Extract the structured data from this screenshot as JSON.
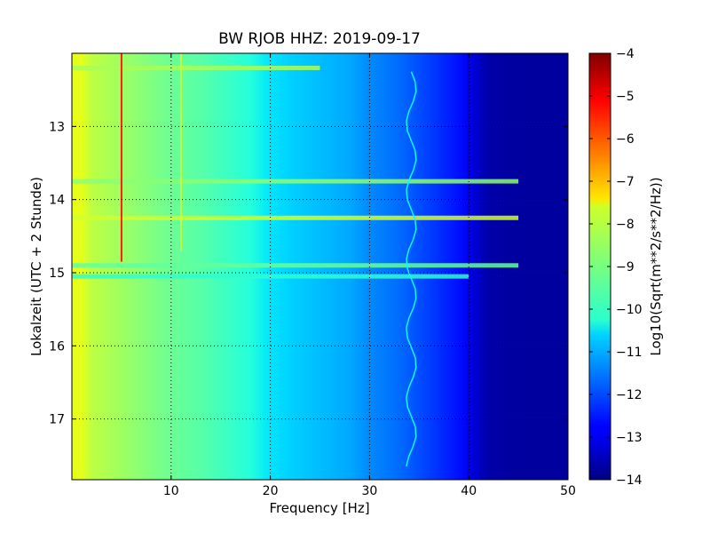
{
  "chart_data": {
    "type": "heatmap",
    "title": "BW RJOB HHZ: 2019-09-17",
    "xlabel": "Frequency [Hz]",
    "ylabel": "Lokalzeit (UTC + 2 Stunde)",
    "xlim": [
      0,
      50
    ],
    "ylim": [
      12.0,
      17.83
    ],
    "y_inverted": true,
    "x_ticks": [
      10,
      20,
      30,
      40,
      50
    ],
    "x_tick_labels": [
      "10",
      "20",
      "30",
      "40",
      "50"
    ],
    "y_ticks": [
      13,
      14,
      15,
      16,
      17
    ],
    "y_tick_labels": [
      "13",
      "14",
      "15",
      "16",
      "17"
    ],
    "grid": true,
    "colormap": "jet",
    "colorbar": {
      "label": "Log10(Sqrt(m**2/s**2/Hz))",
      "range": [
        -14,
        -4
      ],
      "ticks": [
        -4,
        -5,
        -6,
        -7,
        -8,
        -9,
        -10,
        -11,
        -12,
        -13,
        -14
      ],
      "tick_labels": [
        "−4",
        "−5",
        "−6",
        "−7",
        "−8",
        "−9",
        "−10",
        "−11",
        "−12",
        "−13",
        "−14"
      ]
    },
    "spectrum_profile": {
      "frequency_hz": [
        0,
        1,
        2,
        3,
        5,
        8,
        10,
        13,
        16,
        18,
        20,
        22,
        25,
        28,
        30,
        33,
        35,
        37,
        39,
        40,
        41,
        42,
        45,
        50
      ],
      "log10_amplitude": [
        -8.0,
        -8.0,
        -8.4,
        -8.5,
        -8.7,
        -9.0,
        -9.2,
        -9.4,
        -9.7,
        -9.9,
        -10.5,
        -10.7,
        -10.9,
        -11.1,
        -11.4,
        -11.7,
        -12.0,
        -12.3,
        -12.6,
        -12.9,
        -13.3,
        -13.6,
        -13.7,
        -13.7
      ]
    },
    "annotations": [
      {
        "kind": "line_feature",
        "frequency_hz": 5.0,
        "time_range": [
          12.0,
          14.85
        ],
        "log10_amplitude": -5.5
      },
      {
        "kind": "line_feature",
        "frequency_hz": 11.0,
        "time_range": [
          12.0,
          14.7
        ],
        "log10_amplitude": -8.3
      },
      {
        "kind": "wandering_feature",
        "frequency_hz": 34.2,
        "time_range": [
          12.25,
          17.65
        ],
        "log10_amplitude": -10.2
      },
      {
        "kind": "broadband_band",
        "time": 12.2,
        "freq_range": [
          0,
          25
        ],
        "log10_amplitude": -8.6
      },
      {
        "kind": "broadband_band",
        "time": 13.75,
        "freq_range": [
          0,
          45
        ],
        "log10_amplitude": -8.9
      },
      {
        "kind": "broadband_band",
        "time": 14.25,
        "freq_range": [
          0,
          45
        ],
        "log10_amplitude": -8.2
      },
      {
        "kind": "broadband_band",
        "time": 14.9,
        "freq_range": [
          0,
          45
        ],
        "log10_amplitude": -9.3
      },
      {
        "kind": "broadband_band",
        "time": 15.05,
        "freq_range": [
          0,
          40
        ],
        "log10_amplitude": -9.8
      }
    ]
  }
}
